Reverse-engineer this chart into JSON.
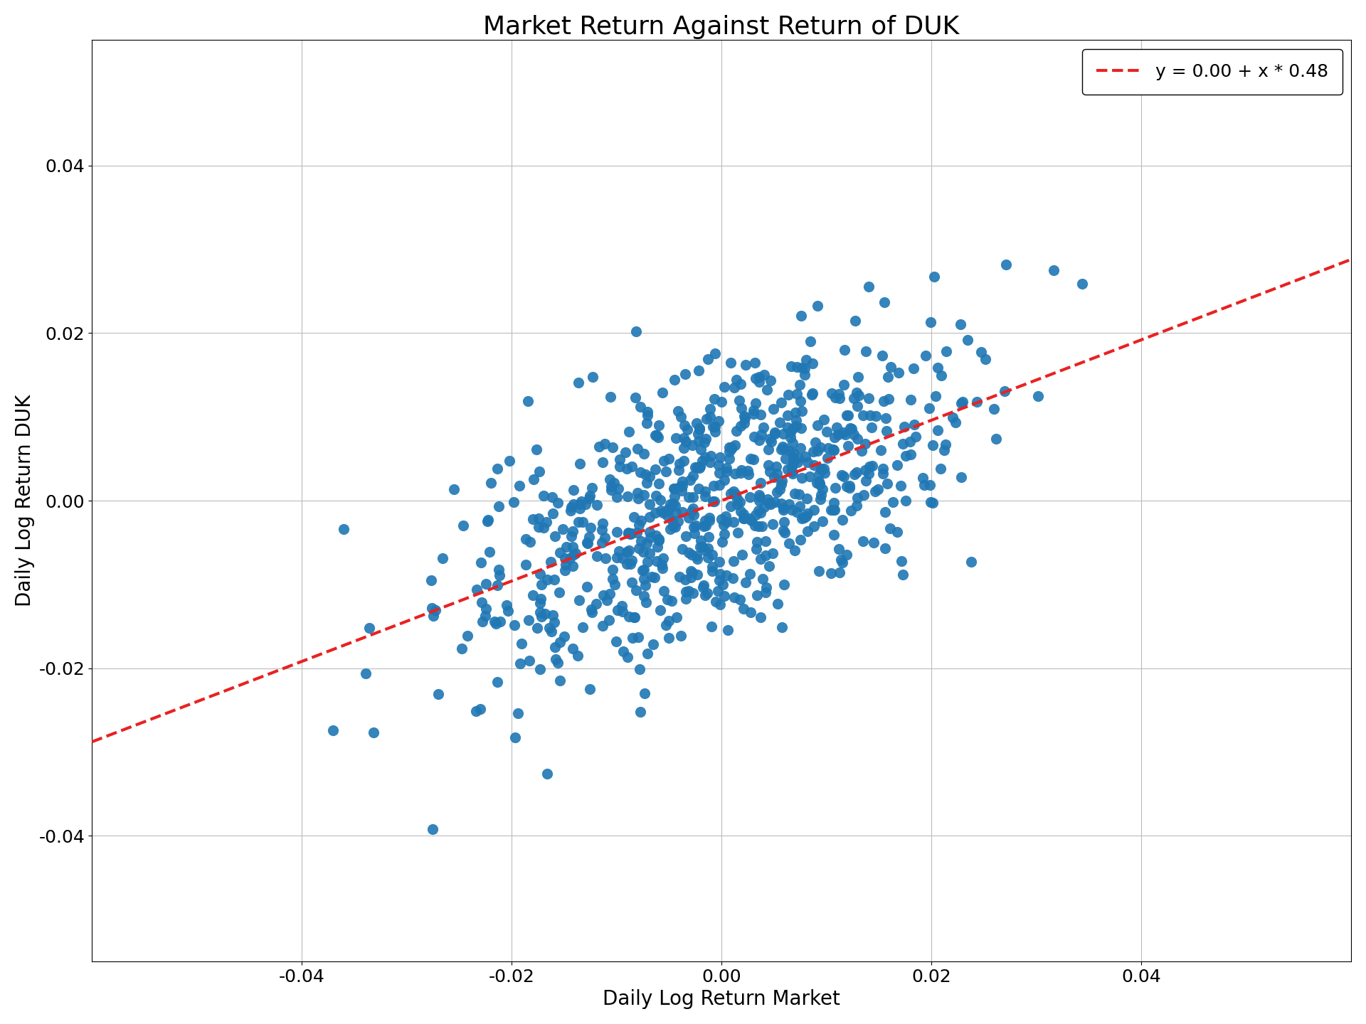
{
  "title": "Market Return Against Return of DUK",
  "xlabel": "Daily Log Return Market",
  "ylabel": "Daily Log Return DUK",
  "legend_label": "y = 0.00 + x * 0.48",
  "intercept": 0.0,
  "slope": 0.48,
  "xlim": [
    -0.06,
    0.06
  ],
  "ylim": [
    -0.055,
    0.055
  ],
  "xticks": [
    -0.04,
    -0.02,
    0.0,
    0.02,
    0.04
  ],
  "yticks": [
    -0.04,
    -0.02,
    0.0,
    0.02,
    0.04
  ],
  "scatter_color": "#1f77b4",
  "line_color": "#e82222",
  "dot_size": 120,
  "n_points": 750,
  "seed": 7,
  "title_fontsize": 26,
  "label_fontsize": 20,
  "tick_fontsize": 18,
  "legend_fontsize": 18,
  "background_color": "#ffffff",
  "grid_color": "#bbbbbb"
}
